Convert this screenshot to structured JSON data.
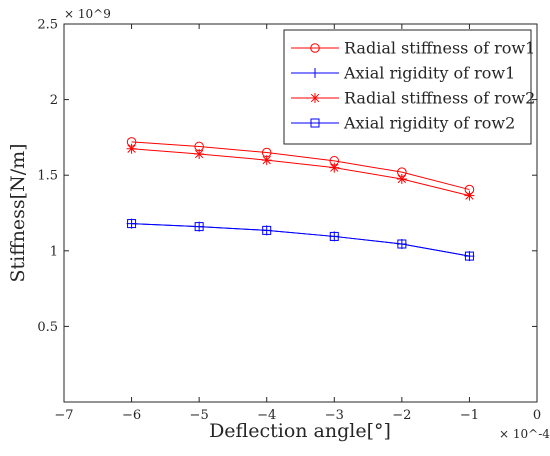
{
  "chart_data": {
    "type": "line",
    "title": "",
    "xlabel": "Deflection angle[°]",
    "ylabel": "Stiffness[N/m]",
    "x_multiplier": "× 10^-4",
    "y_multiplier": "× 10^9",
    "xlim": [
      -7,
      0
    ],
    "ylim": [
      0,
      2.5
    ],
    "x_ticks": [
      -7,
      -6,
      -5,
      -4,
      -3,
      -2,
      -1,
      0
    ],
    "y_ticks": [
      0.5,
      1,
      1.5,
      2,
      2.5
    ],
    "x_tick_labels": [
      "−7",
      "−6",
      "−5",
      "−4",
      "−3",
      "−2",
      "−1",
      "0"
    ],
    "y_tick_labels": [
      "0.5",
      "1",
      "1.5",
      "2",
      "2.5"
    ],
    "grid": false,
    "legend_position": "top-right",
    "x": [
      -6,
      -5,
      -4,
      -3,
      -2,
      -1
    ],
    "series": [
      {
        "name": "Radial stiffness of row1",
        "color": "#ff0000",
        "marker": "circle",
        "values": [
          1.72,
          1.69,
          1.65,
          1.595,
          1.52,
          1.405
        ]
      },
      {
        "name": "Axial rigidity of row1",
        "color": "#0000ff",
        "marker": "plus",
        "values": [
          1.18,
          1.16,
          1.135,
          1.095,
          1.045,
          0.965
        ]
      },
      {
        "name": "Radial stiffness of row2",
        "color": "#ff0000",
        "marker": "star",
        "values": [
          1.675,
          1.64,
          1.6,
          1.55,
          1.475,
          1.365
        ]
      },
      {
        "name": "Axial rigidity of row2",
        "color": "#0000ff",
        "marker": "square",
        "values": [
          1.18,
          1.16,
          1.135,
          1.095,
          1.045,
          0.965
        ]
      }
    ]
  }
}
